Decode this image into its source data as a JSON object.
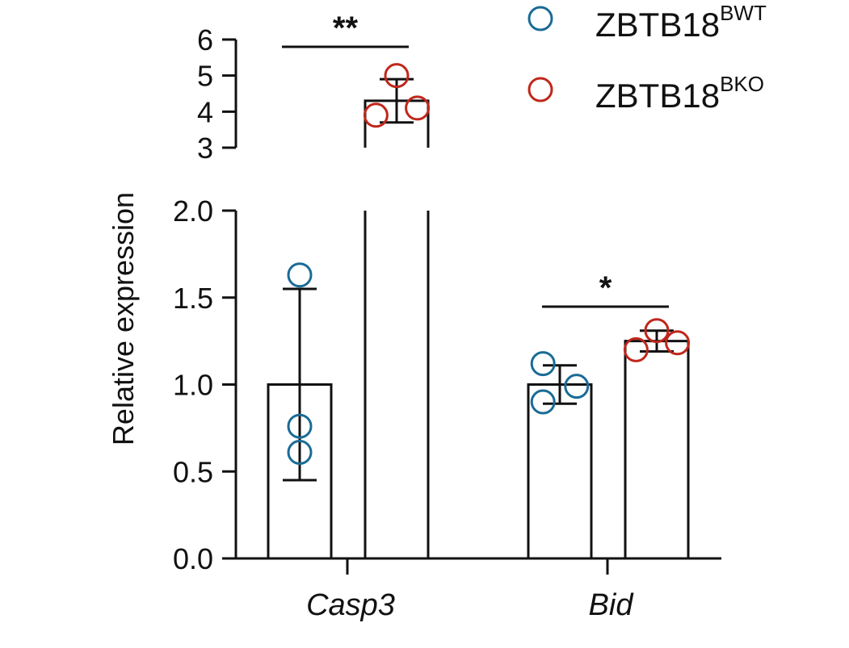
{
  "chart_data": {
    "type": "bar",
    "categories": [
      "Casp3",
      "Bid"
    ],
    "ylabel": "Relative expression",
    "y_axis_broken": true,
    "ylim_lower": [
      0,
      2.0
    ],
    "ylim_upper": [
      3,
      6
    ],
    "yticks_lower": [
      "0.0",
      "0.5",
      "1.0",
      "1.5",
      "2.0"
    ],
    "yticks_upper": [
      "3",
      "4",
      "5",
      "6"
    ],
    "series": [
      {
        "name": "ZBTB18",
        "name_superscript": "BWT",
        "color": "#1a6b96",
        "values": [
          1.0,
          1.0
        ],
        "sd": [
          0.55,
          0.11
        ],
        "points": [
          [
            1.63,
            0.76,
            0.61
          ],
          [
            1.12,
            0.99,
            0.9
          ]
        ]
      },
      {
        "name": "ZBTB18",
        "name_superscript": "BKO",
        "color": "#c0271b",
        "values": [
          4.3,
          1.25
        ],
        "sd": [
          0.6,
          0.06
        ],
        "points": [
          [
            5.0,
            4.1,
            3.9
          ],
          [
            1.31,
            1.24,
            1.2
          ]
        ]
      }
    ],
    "significance": [
      {
        "category": "Casp3",
        "label": "**"
      },
      {
        "category": "Bid",
        "label": "*"
      }
    ],
    "legend_position": "top-right",
    "grid": false
  }
}
